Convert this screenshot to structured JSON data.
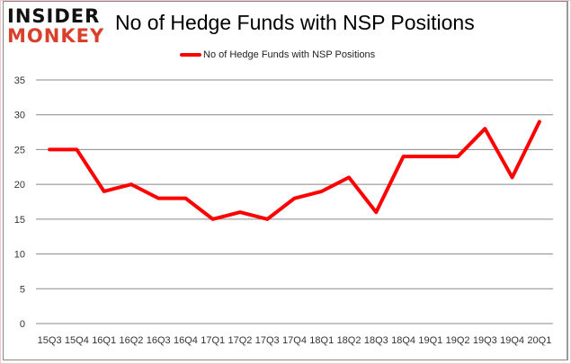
{
  "brand": {
    "line1": "INSIDER",
    "line2": "MONKEY"
  },
  "chart_data": {
    "type": "line",
    "title": "No of Hedge Funds with NSP Positions",
    "categories": [
      "15Q3",
      "15Q4",
      "16Q1",
      "16Q2",
      "16Q3",
      "16Q4",
      "17Q1",
      "17Q2",
      "17Q3",
      "17Q4",
      "18Q1",
      "18Q2",
      "18Q3",
      "18Q4",
      "19Q1",
      "19Q2",
      "19Q3",
      "19Q4",
      "20Q1"
    ],
    "series": [
      {
        "name": "No of Hedge Funds with NSP Positions",
        "color": "#ff0000",
        "values": [
          25,
          25,
          19,
          20,
          18,
          18,
          15,
          16,
          15,
          18,
          19,
          21,
          16,
          24,
          24,
          24,
          28,
          21,
          29
        ]
      }
    ],
    "ylim": [
      0,
      35
    ],
    "yticks": [
      0,
      5,
      10,
      15,
      20,
      25,
      30,
      35
    ],
    "grid": true,
    "legend": "top-center",
    "xlabel": "",
    "ylabel": ""
  }
}
